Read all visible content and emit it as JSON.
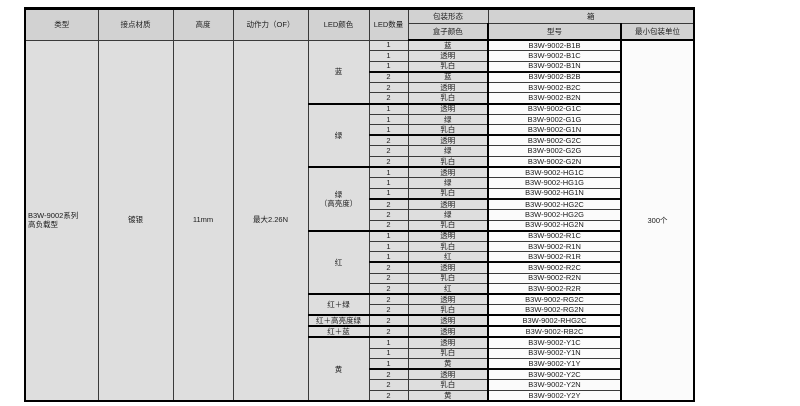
{
  "table": {
    "headers": {
      "type": "类型",
      "contact_material": "接点材质",
      "height": "高度",
      "operating_force": "动作力（OF）",
      "led_color": "LED颜色",
      "led_count": "LED数量",
      "packaging_form": "包装形态",
      "box_color": "盒子颜色",
      "carton": "箱",
      "model": "型号",
      "min_package_unit": "最小包装单位"
    },
    "series": {
      "type_line1": "B3W-9002系列",
      "type_line2": "高负载型",
      "contact_material": "镀银",
      "height": "11mm",
      "operating_force": "最大2.26N",
      "min_package_unit": "300个"
    },
    "groups": [
      {
        "led_color": "蓝",
        "rows": [
          {
            "qty": "1",
            "box": "蓝",
            "model": "B3W-9002-B1B"
          },
          {
            "qty": "1",
            "box": "透明",
            "model": "B3W-9002-B1C"
          },
          {
            "qty": "1",
            "box": "乳白",
            "model": "B3W-9002-B1N"
          },
          {
            "qty": "2",
            "box": "蓝",
            "model": "B3W-9002-B2B"
          },
          {
            "qty": "2",
            "box": "透明",
            "model": "B3W-9002-B2C"
          },
          {
            "qty": "2",
            "box": "乳白",
            "model": "B3W-9002-B2N"
          }
        ]
      },
      {
        "led_color": "绿",
        "rows": [
          {
            "qty": "1",
            "box": "透明",
            "model": "B3W-9002-G1C"
          },
          {
            "qty": "1",
            "box": "绿",
            "model": "B3W-9002-G1G"
          },
          {
            "qty": "1",
            "box": "乳白",
            "model": "B3W-9002-G1N"
          },
          {
            "qty": "2",
            "box": "透明",
            "model": "B3W-9002-G2C"
          },
          {
            "qty": "2",
            "box": "绿",
            "model": "B3W-9002-G2G"
          },
          {
            "qty": "2",
            "box": "乳白",
            "model": "B3W-9002-G2N"
          }
        ]
      },
      {
        "led_color": "绿",
        "led_color_sub": "（高亮度）",
        "rows": [
          {
            "qty": "1",
            "box": "透明",
            "model": "B3W-9002-HG1C"
          },
          {
            "qty": "1",
            "box": "绿",
            "model": "B3W-9002-HG1G"
          },
          {
            "qty": "1",
            "box": "乳白",
            "model": "B3W-9002-HG1N"
          },
          {
            "qty": "2",
            "box": "透明",
            "model": "B3W-9002-HG2C"
          },
          {
            "qty": "2",
            "box": "绿",
            "model": "B3W-9002-HG2G"
          },
          {
            "qty": "2",
            "box": "乳白",
            "model": "B3W-9002-HG2N"
          }
        ]
      },
      {
        "led_color": "红",
        "rows": [
          {
            "qty": "1",
            "box": "透明",
            "model": "B3W-9002-R1C"
          },
          {
            "qty": "1",
            "box": "乳白",
            "model": "B3W-9002-R1N"
          },
          {
            "qty": "1",
            "box": "红",
            "model": "B3W-9002-R1R"
          },
          {
            "qty": "2",
            "box": "透明",
            "model": "B3W-9002-R2C"
          },
          {
            "qty": "2",
            "box": "乳白",
            "model": "B3W-9002-R2N"
          },
          {
            "qty": "2",
            "box": "红",
            "model": "B3W-9002-R2R"
          }
        ]
      },
      {
        "led_color": "红＋绿",
        "rows": [
          {
            "qty": "2",
            "box": "透明",
            "model": "B3W-9002-RG2C"
          },
          {
            "qty": "2",
            "box": "乳白",
            "model": "B3W-9002-RG2N"
          }
        ]
      },
      {
        "led_color": "红＋高亮度绿",
        "rows": [
          {
            "qty": "2",
            "box": "透明",
            "model": "B3W-9002-RHG2C"
          }
        ]
      },
      {
        "led_color": "红＋蓝",
        "rows": [
          {
            "qty": "2",
            "box": "透明",
            "model": "B3W-9002-RB2C"
          }
        ]
      },
      {
        "led_color": "黄",
        "rows": [
          {
            "qty": "1",
            "box": "透明",
            "model": "B3W-9002-Y1C"
          },
          {
            "qty": "1",
            "box": "乳白",
            "model": "B3W-9002-Y1N"
          },
          {
            "qty": "1",
            "box": "黄",
            "model": "B3W-9002-Y1Y"
          },
          {
            "qty": "2",
            "box": "透明",
            "model": "B3W-9002-Y2C"
          },
          {
            "qty": "2",
            "box": "乳白",
            "model": "B3W-9002-Y2N"
          },
          {
            "qty": "2",
            "box": "黄",
            "model": "B3W-9002-Y2Y"
          }
        ]
      }
    ]
  }
}
